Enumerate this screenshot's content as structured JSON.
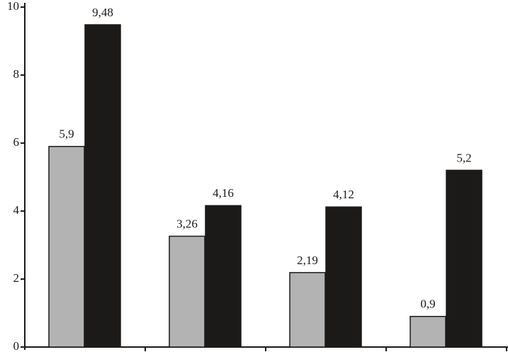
{
  "chart_data": {
    "type": "bar",
    "categories": [
      null,
      null,
      null,
      null
    ],
    "series": [
      {
        "color": "#b3b3b3",
        "values": [
          5.9,
          3.26,
          2.19,
          0.9
        ],
        "value_labels": [
          "5,9",
          "3,26",
          "2,19",
          "0,9"
        ]
      },
      {
        "color": "#1c1a18",
        "values": [
          9.48,
          4.16,
          4.12,
          5.2
        ],
        "value_labels": [
          "9,48",
          "4,16",
          "4,12",
          "5,2"
        ]
      }
    ],
    "ylim": [
      0,
      10
    ],
    "yticks": [
      0,
      2,
      4,
      6,
      8,
      10
    ]
  }
}
